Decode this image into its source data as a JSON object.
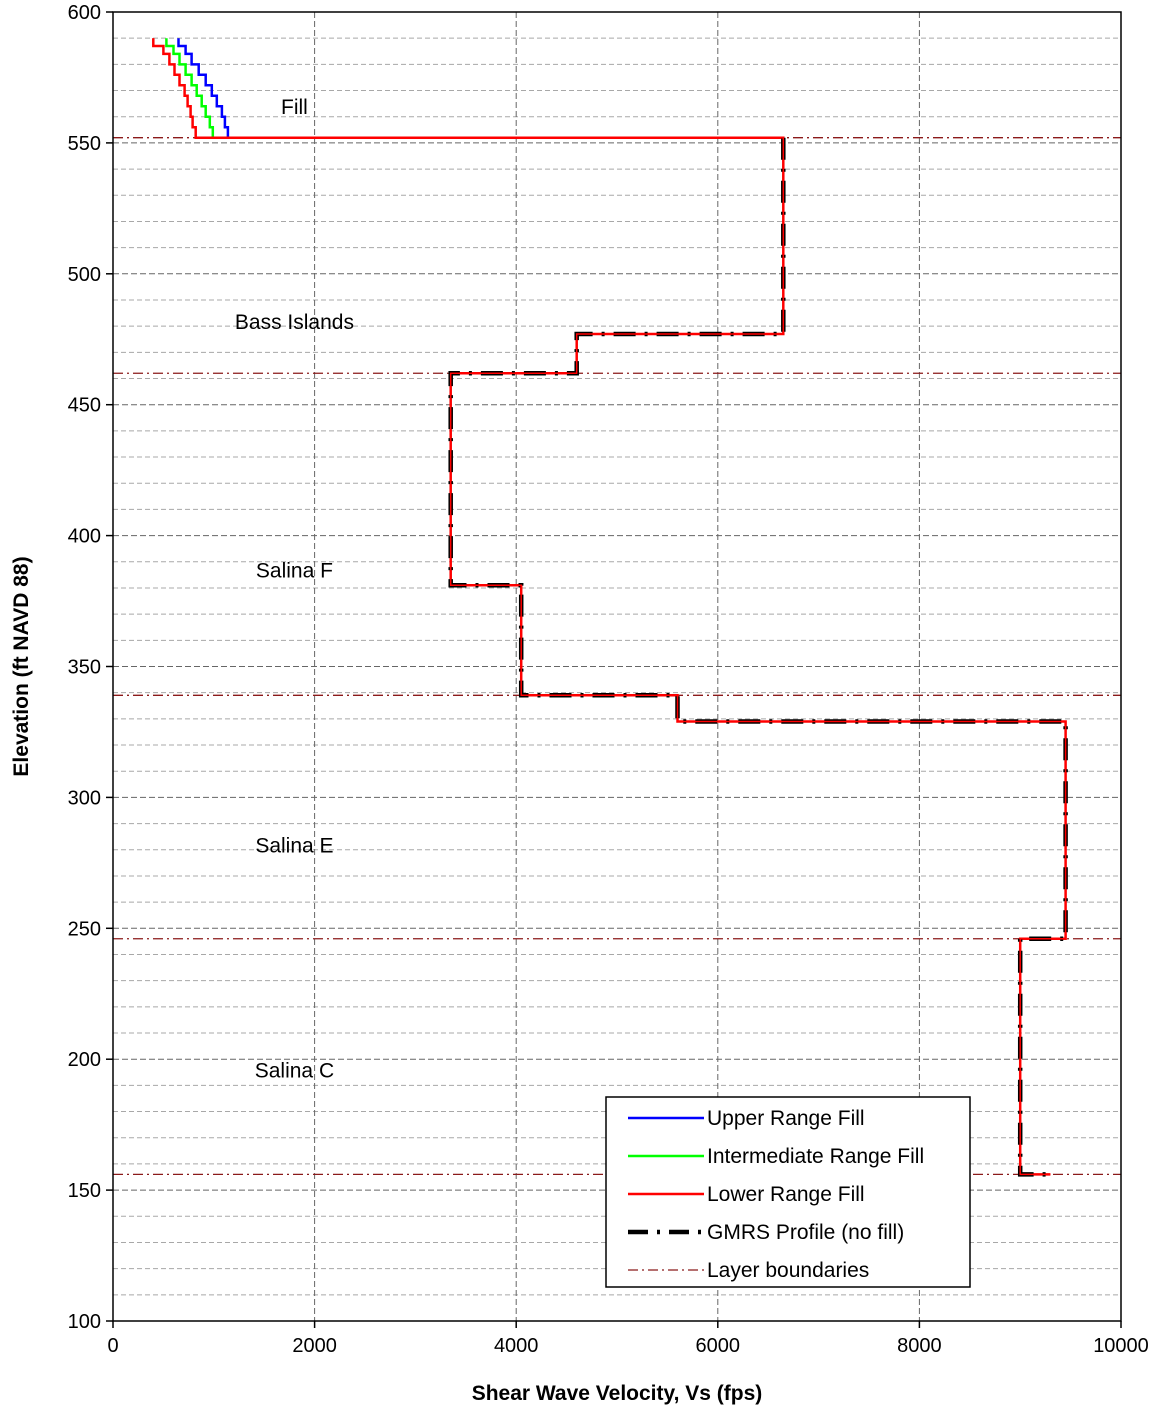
{
  "chart_data": {
    "type": "line",
    "xlabel": "Shear Wave Velocity, Vs (fps)",
    "ylabel": "Elevation (ft NAVD 88)",
    "xlim": [
      0,
      10000
    ],
    "ylim": [
      100,
      600
    ],
    "x_ticks": [
      "0",
      "2000",
      "4000",
      "6000",
      "8000",
      "10000"
    ],
    "y_ticks": [
      "100",
      "150",
      "200",
      "250",
      "300",
      "350",
      "400",
      "450",
      "500",
      "550",
      "600"
    ],
    "grid": {
      "major": true,
      "minor_y_step": 10
    },
    "legend_position": "bottom-right",
    "layer_labels": [
      {
        "text": "Fill",
        "x": 1800,
        "y": 564
      },
      {
        "text": "Bass Islands",
        "x": 1800,
        "y": 482
      },
      {
        "text": "Salina F",
        "x": 1800,
        "y": 387
      },
      {
        "text": "Salina E",
        "x": 1800,
        "y": 282
      },
      {
        "text": "Salina C",
        "x": 1800,
        "y": 196
      }
    ],
    "layer_boundaries": {
      "name": "Layer boundaries",
      "color": "#8B1A1A",
      "elevations": [
        552,
        462,
        339,
        246,
        156
      ]
    },
    "series": [
      {
        "name": "Upper Range Fill",
        "color": "#0000FF",
        "points": [
          [
            650,
            590
          ],
          [
            650,
            587
          ],
          [
            720,
            587
          ],
          [
            720,
            584
          ],
          [
            780,
            584
          ],
          [
            780,
            580
          ],
          [
            850,
            580
          ],
          [
            850,
            576
          ],
          [
            920,
            576
          ],
          [
            920,
            572
          ],
          [
            980,
            572
          ],
          [
            980,
            568
          ],
          [
            1030,
            568
          ],
          [
            1030,
            564
          ],
          [
            1080,
            564
          ],
          [
            1080,
            560
          ],
          [
            1110,
            560
          ],
          [
            1110,
            556
          ],
          [
            1140,
            556
          ],
          [
            1140,
            552
          ],
          [
            6650,
            552
          ]
        ]
      },
      {
        "name": "Intermediate Range Fill",
        "color": "#00FF00",
        "points": [
          [
            530,
            590
          ],
          [
            530,
            587
          ],
          [
            600,
            587
          ],
          [
            600,
            584
          ],
          [
            660,
            584
          ],
          [
            660,
            580
          ],
          [
            720,
            580
          ],
          [
            720,
            576
          ],
          [
            780,
            576
          ],
          [
            780,
            572
          ],
          [
            830,
            572
          ],
          [
            830,
            568
          ],
          [
            880,
            568
          ],
          [
            880,
            564
          ],
          [
            920,
            564
          ],
          [
            920,
            560
          ],
          [
            960,
            560
          ],
          [
            960,
            556
          ],
          [
            990,
            556
          ],
          [
            990,
            552
          ],
          [
            6650,
            552
          ]
        ]
      },
      {
        "name": "Lower Range Fill",
        "color": "#FF0000",
        "points": [
          [
            400,
            590
          ],
          [
            400,
            587
          ],
          [
            500,
            587
          ],
          [
            500,
            584
          ],
          [
            560,
            584
          ],
          [
            560,
            580
          ],
          [
            610,
            580
          ],
          [
            610,
            576
          ],
          [
            660,
            576
          ],
          [
            660,
            572
          ],
          [
            710,
            572
          ],
          [
            710,
            568
          ],
          [
            740,
            568
          ],
          [
            740,
            564
          ],
          [
            770,
            564
          ],
          [
            770,
            560
          ],
          [
            790,
            560
          ],
          [
            790,
            556
          ],
          [
            820,
            556
          ],
          [
            820,
            552
          ],
          [
            6650,
            552
          ],
          [
            6650,
            477
          ],
          [
            4600,
            477
          ],
          [
            4600,
            462
          ],
          [
            3350,
            462
          ],
          [
            3350,
            381
          ],
          [
            4050,
            381
          ],
          [
            4050,
            339
          ],
          [
            5600,
            339
          ],
          [
            5600,
            329
          ],
          [
            9450,
            329
          ],
          [
            9450,
            246
          ],
          [
            9000,
            246
          ],
          [
            9000,
            156
          ],
          [
            9300,
            156
          ]
        ]
      },
      {
        "name": "GMRS Profile (no fill)",
        "color": "#000000",
        "points": [
          [
            6650,
            552
          ],
          [
            6650,
            477
          ],
          [
            4600,
            477
          ],
          [
            4600,
            462
          ],
          [
            3350,
            462
          ],
          [
            3350,
            381
          ],
          [
            4050,
            381
          ],
          [
            4050,
            339
          ],
          [
            5600,
            339
          ],
          [
            5600,
            329
          ],
          [
            9450,
            329
          ],
          [
            9450,
            246
          ],
          [
            9000,
            246
          ],
          [
            9000,
            156
          ],
          [
            9300,
            156
          ]
        ]
      }
    ]
  }
}
